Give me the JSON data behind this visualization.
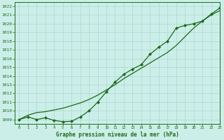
{
  "title": "Graphe pression niveau de la mer (hPa)",
  "bg_color": "#cceee8",
  "grid_color": "#aad8d0",
  "line_color": "#1a6b1a",
  "marker_color": "#1a6b1a",
  "xlim": [
    -0.5,
    23
  ],
  "ylim": [
    1008.5,
    1022.5
  ],
  "yticks": [
    1009,
    1010,
    1011,
    1012,
    1013,
    1014,
    1015,
    1016,
    1017,
    1018,
    1019,
    1020,
    1021,
    1022
  ],
  "xticks": [
    0,
    1,
    2,
    3,
    4,
    5,
    6,
    7,
    8,
    9,
    10,
    11,
    12,
    13,
    14,
    15,
    16,
    17,
    18,
    19,
    20,
    21,
    22,
    23
  ],
  "series1_x": [
    0,
    1,
    2,
    3,
    4,
    5,
    6,
    7,
    8,
    9,
    10,
    11,
    12,
    13,
    14,
    15,
    16,
    17,
    18,
    19,
    20,
    21,
    22,
    23
  ],
  "series1_y": [
    1009.0,
    1009.5,
    1009.8,
    1009.9,
    1010.1,
    1010.3,
    1010.6,
    1010.9,
    1011.3,
    1011.8,
    1012.4,
    1013.0,
    1013.7,
    1014.3,
    1014.9,
    1015.5,
    1016.1,
    1016.7,
    1017.5,
    1018.5,
    1019.5,
    1020.3,
    1021.0,
    1021.5
  ],
  "series2_x": [
    0,
    1,
    2,
    3,
    4,
    5,
    6,
    7,
    8,
    9,
    10,
    11,
    12,
    13,
    14,
    15,
    16,
    17,
    18,
    19,
    20,
    21,
    22,
    23
  ],
  "series2_y": [
    1009.0,
    1009.3,
    1009.0,
    1009.2,
    1008.9,
    1008.75,
    1008.8,
    1009.3,
    1010.0,
    1011.0,
    1012.2,
    1013.3,
    1014.2,
    1014.8,
    1015.3,
    1016.5,
    1017.3,
    1018.0,
    1019.5,
    1019.8,
    1020.0,
    1020.3,
    1021.1,
    1021.8
  ],
  "figwidth": 3.2,
  "figheight": 2.0,
  "dpi": 100
}
